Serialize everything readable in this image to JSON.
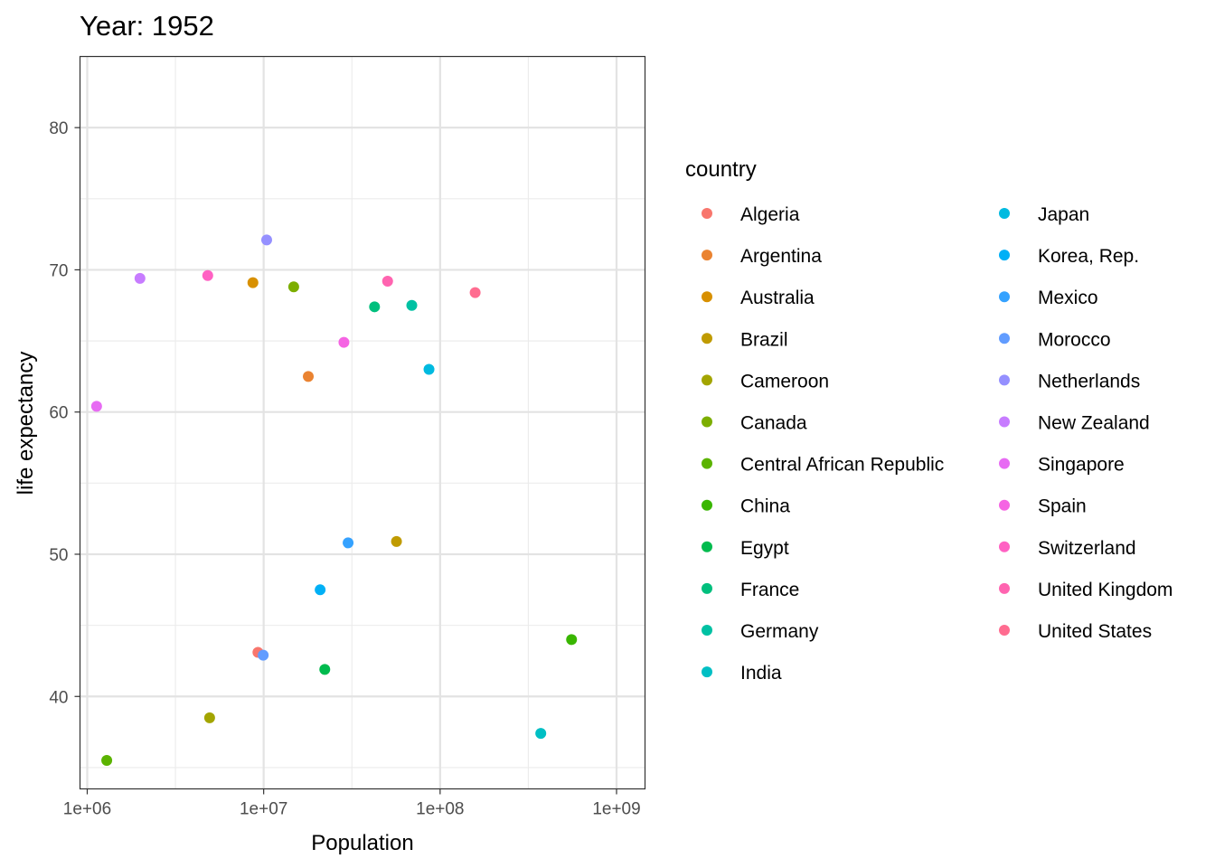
{
  "chart_data": {
    "type": "scatter",
    "title": "Year: 1952",
    "xlabel": "Population",
    "ylabel": "life expectancy",
    "x_scale": "log10",
    "xlim": [
      910000,
      1450000000
    ],
    "ylim": [
      33.5,
      85
    ],
    "x_ticks": [
      1000000,
      10000000,
      100000000,
      1000000000
    ],
    "x_tick_labels": [
      "1e+06",
      "1e+07",
      "1e+08",
      "1e+09"
    ],
    "y_ticks": [
      40,
      50,
      60,
      70,
      80
    ],
    "y_tick_labels": [
      "40",
      "50",
      "60",
      "70",
      "80"
    ],
    "grid": true,
    "legend_title": "country",
    "legend_position": "right",
    "series": [
      {
        "name": "Algeria",
        "color": "#F8766D",
        "x": 9280000,
        "y": 43.1
      },
      {
        "name": "Argentina",
        "color": "#EA8331",
        "x": 17900000,
        "y": 62.5
      },
      {
        "name": "Australia",
        "color": "#D89000",
        "x": 8690000,
        "y": 69.1
      },
      {
        "name": "Brazil",
        "color": "#C09B00",
        "x": 56600000,
        "y": 50.9
      },
      {
        "name": "Cameroon",
        "color": "#A3A500",
        "x": 4940000,
        "y": 38.5
      },
      {
        "name": "Canada",
        "color": "#7CAE00",
        "x": 14800000,
        "y": 68.8
      },
      {
        "name": "Central African Republic",
        "color": "#5BB300",
        "x": 1290000,
        "y": 35.5
      },
      {
        "name": "China",
        "color": "#39B600",
        "x": 556000000,
        "y": 44.0
      },
      {
        "name": "Egypt",
        "color": "#00BB4E",
        "x": 22200000,
        "y": 41.9
      },
      {
        "name": "France",
        "color": "#00BF7D",
        "x": 42500000,
        "y": 67.4
      },
      {
        "name": "Germany",
        "color": "#00C1A3",
        "x": 69100000,
        "y": 67.5
      },
      {
        "name": "India",
        "color": "#00BFC4",
        "x": 372000000,
        "y": 37.4
      },
      {
        "name": "Japan",
        "color": "#00BAE0",
        "x": 86500000,
        "y": 63.0
      },
      {
        "name": "Korea, Rep.",
        "color": "#00B0F6",
        "x": 20900000,
        "y": 47.5
      },
      {
        "name": "Mexico",
        "color": "#35A2FF",
        "x": 30100000,
        "y": 50.8
      },
      {
        "name": "Morocco",
        "color": "#619CFF",
        "x": 9940000,
        "y": 42.9
      },
      {
        "name": "Netherlands",
        "color": "#9590FF",
        "x": 10400000,
        "y": 72.1
      },
      {
        "name": "New Zealand",
        "color": "#C77CFF",
        "x": 1990000,
        "y": 69.4
      },
      {
        "name": "Singapore",
        "color": "#E76BF3",
        "x": 1130000,
        "y": 60.4
      },
      {
        "name": "Spain",
        "color": "#F564E3",
        "x": 28500000,
        "y": 64.9
      },
      {
        "name": "Switzerland",
        "color": "#FF61C3",
        "x": 4820000,
        "y": 69.6
      },
      {
        "name": "United Kingdom",
        "color": "#FF64B0",
        "x": 50400000,
        "y": 69.2
      },
      {
        "name": "United States",
        "color": "#FF6C90",
        "x": 158000000,
        "y": 68.4
      }
    ]
  }
}
